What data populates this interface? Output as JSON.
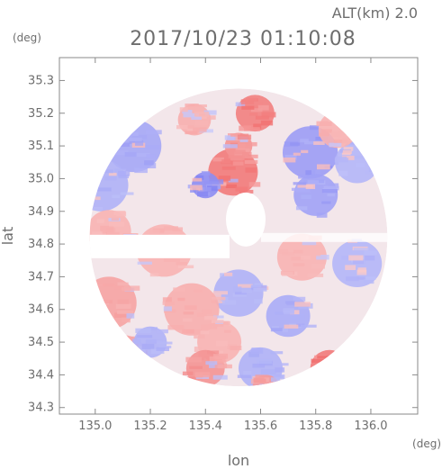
{
  "chart_data": {
    "type": "heatmap",
    "title": "2017/10/23 01:10:08",
    "altitude_label": "ALT(km) 2.0",
    "xlabel": "lon",
    "ylabel": "lat",
    "x_unit": "(deg)",
    "y_unit": "(deg)",
    "xlim": [
      134.87,
      136.17
    ],
    "ylim": [
      34.28,
      35.37
    ],
    "x_ticks": [
      135.0,
      135.2,
      135.4,
      135.6,
      135.8,
      136.0
    ],
    "x_tick_labels": [
      "135.0",
      "135.2",
      "135.4",
      "135.6",
      "135.8",
      "136.0"
    ],
    "y_ticks": [
      34.3,
      34.4,
      34.5,
      34.6,
      34.7,
      34.8,
      34.9,
      35.0,
      35.1,
      35.2,
      35.3
    ],
    "y_tick_labels": [
      "34.3",
      "34.4",
      "34.5",
      "34.6",
      "34.7",
      "34.8",
      "34.9",
      "35.0",
      "35.1",
      "35.2",
      "35.3"
    ],
    "radar_center": [
      135.52,
      34.82
    ],
    "radar_radius_deg": 0.54,
    "colors": {
      "positive_strong": "#f06a6a",
      "positive_weak": "#fbd2d2",
      "negative_strong": "#6f6ff0",
      "negative_weak": "#d2d4fb",
      "frame": "#8a8a8a",
      "text": "#6e6e6e"
    },
    "regions": [
      {
        "lon": 135.5,
        "lat": 35.02,
        "r": 0.09,
        "value": 0.85
      },
      {
        "lon": 135.58,
        "lat": 35.2,
        "r": 0.07,
        "value": 0.8
      },
      {
        "lon": 135.52,
        "lat": 35.1,
        "r": 0.05,
        "value": 0.6
      },
      {
        "lon": 135.4,
        "lat": 34.98,
        "r": 0.05,
        "value": -0.7
      },
      {
        "lon": 135.36,
        "lat": 35.18,
        "r": 0.06,
        "value": 0.35
      },
      {
        "lon": 135.14,
        "lat": 35.1,
        "r": 0.1,
        "value": -0.45
      },
      {
        "lon": 135.02,
        "lat": 34.98,
        "r": 0.1,
        "value": -0.35
      },
      {
        "lon": 135.78,
        "lat": 35.08,
        "r": 0.1,
        "value": -0.55
      },
      {
        "lon": 135.95,
        "lat": 35.05,
        "r": 0.08,
        "value": -0.3
      },
      {
        "lon": 135.8,
        "lat": 34.95,
        "r": 0.08,
        "value": -0.5
      },
      {
        "lon": 135.88,
        "lat": 35.15,
        "r": 0.07,
        "value": 0.3
      },
      {
        "lon": 135.05,
        "lat": 34.84,
        "r": 0.08,
        "value": 0.3
      },
      {
        "lon": 135.25,
        "lat": 34.78,
        "r": 0.1,
        "value": 0.3
      },
      {
        "lon": 135.75,
        "lat": 34.76,
        "r": 0.09,
        "value": 0.3
      },
      {
        "lon": 135.95,
        "lat": 34.74,
        "r": 0.09,
        "value": -0.3
      },
      {
        "lon": 135.52,
        "lat": 34.65,
        "r": 0.09,
        "value": -0.35
      },
      {
        "lon": 135.35,
        "lat": 34.6,
        "r": 0.1,
        "value": 0.35
      },
      {
        "lon": 135.05,
        "lat": 34.62,
        "r": 0.1,
        "value": 0.45
      },
      {
        "lon": 135.7,
        "lat": 34.58,
        "r": 0.08,
        "value": -0.4
      },
      {
        "lon": 135.45,
        "lat": 34.5,
        "r": 0.08,
        "value": 0.3
      },
      {
        "lon": 135.1,
        "lat": 34.45,
        "r": 0.09,
        "value": 0.4
      },
      {
        "lon": 135.6,
        "lat": 34.42,
        "r": 0.08,
        "value": -0.35
      },
      {
        "lon": 135.85,
        "lat": 34.42,
        "r": 0.07,
        "value": 0.85
      },
      {
        "lon": 135.4,
        "lat": 34.42,
        "r": 0.07,
        "value": 0.6
      },
      {
        "lon": 135.3,
        "lat": 34.33,
        "r": 0.07,
        "value": 0.8
      },
      {
        "lon": 135.62,
        "lat": 34.36,
        "r": 0.05,
        "value": 0.55
      },
      {
        "lon": 135.2,
        "lat": 34.5,
        "r": 0.06,
        "value": -0.35
      }
    ]
  }
}
